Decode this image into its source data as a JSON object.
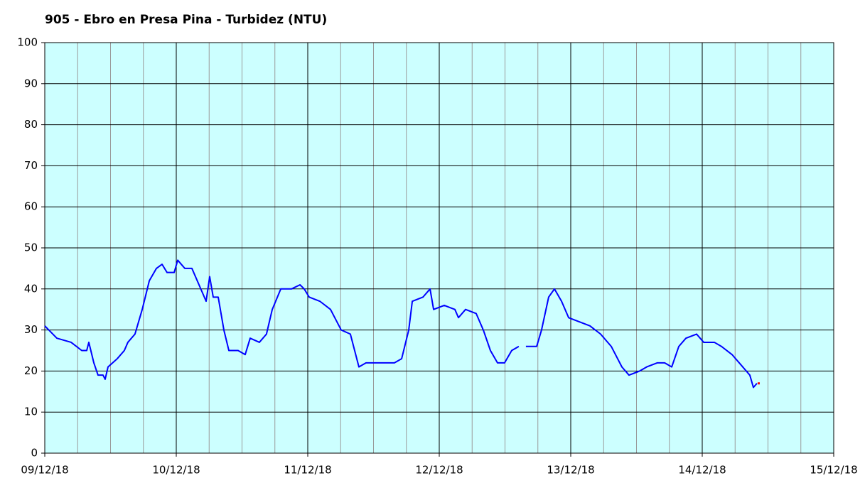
{
  "chart_data": {
    "type": "line",
    "title": "905 - Ebro en Presa Pina - Turbidez (NTU)",
    "x": [
      0,
      0.092,
      0.2,
      0.281,
      0.319,
      0.335,
      0.373,
      0.405,
      0.443,
      0.459,
      0.481,
      0.551,
      0.605,
      0.632,
      0.686,
      0.741,
      0.795,
      0.849,
      0.892,
      0.93,
      0.984,
      1.011,
      1.065,
      1.119,
      1.173,
      1.227,
      1.254,
      1.281,
      1.319,
      1.362,
      1.4,
      1.47,
      1.524,
      1.562,
      1.632,
      1.686,
      1.73,
      1.795,
      1.876,
      1.941,
      1.973,
      2.011,
      2.092,
      2.173,
      2.254,
      2.324,
      2.389,
      2.443,
      2.659,
      2.714,
      2.768,
      2.795,
      2.876,
      2.93,
      2.957,
      3.038,
      3.119,
      3.146,
      3.2,
      3.281,
      3.335,
      3.389,
      3.443,
      3.497,
      3.551,
      3.605,
      3.632,
      3.659,
      3.741,
      3.778,
      3.832,
      3.876,
      3.93,
      3.984,
      4.065,
      4.146,
      4.227,
      4.308,
      4.389,
      4.443,
      4.524,
      4.578,
      4.659,
      4.714,
      4.768,
      4.822,
      4.876,
      4.957,
      5.011,
      5.092,
      5.146,
      5.227,
      5.281,
      5.335,
      5.362,
      5.389,
      5.416
    ],
    "series": [
      {
        "color": "#0000ff",
        "values": [
          31,
          28,
          27,
          25,
          25,
          27,
          22,
          19,
          19,
          18,
          21,
          23,
          25,
          27,
          29,
          35,
          42,
          45,
          46,
          44,
          44,
          47,
          45,
          45,
          41,
          37,
          43,
          38,
          38,
          30,
          25,
          25,
          24,
          28,
          27,
          29,
          35,
          40,
          40,
          41,
          40,
          38,
          37,
          35,
          30,
          29,
          21,
          22,
          22,
          23,
          30,
          37,
          38,
          40,
          35,
          36,
          35,
          33,
          35,
          34,
          30,
          25,
          22,
          22,
          25,
          26,
          null,
          26,
          26,
          30,
          38,
          40,
          37,
          33,
          32,
          31,
          29,
          26,
          21,
          19,
          20,
          21,
          22,
          22,
          21,
          26,
          28,
          29,
          27,
          27,
          26,
          24,
          22,
          20,
          19,
          16,
          17
        ]
      }
    ],
    "last_point_color": "#ff0000",
    "xlim": [
      0,
      6
    ],
    "xticks": [
      {
        "value": 0,
        "label": "09/12/18"
      },
      {
        "value": 1,
        "label": "10/12/18"
      },
      {
        "value": 2,
        "label": "11/12/18"
      },
      {
        "value": 3,
        "label": "12/12/18"
      },
      {
        "value": 4,
        "label": "13/12/18"
      },
      {
        "value": 5,
        "label": "14/12/18"
      },
      {
        "value": 6,
        "label": "15/12/18"
      }
    ],
    "ylim": [
      0,
      100
    ],
    "yticks": [
      0,
      10,
      20,
      30,
      40,
      50,
      60,
      70,
      80,
      90,
      100
    ],
    "grid": true
  }
}
